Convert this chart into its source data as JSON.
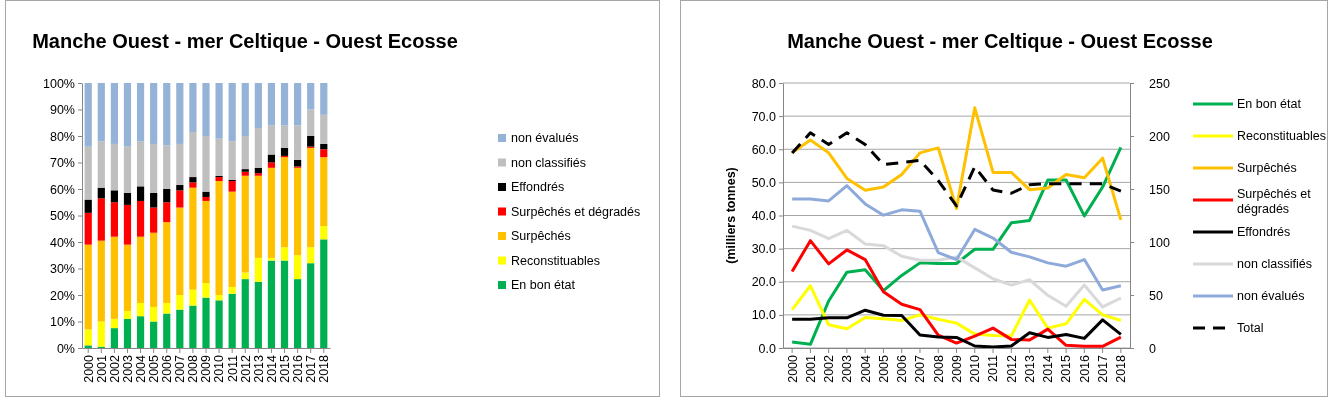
{
  "chart_data": [
    {
      "type": "bar",
      "stacked": true,
      "title": "Manche Ouest - mer Celtique - Ouest Ecosse",
      "legend": "right",
      "categories": [
        "2000",
        "2001",
        "2002",
        "2003",
        "2004",
        "2005",
        "2006",
        "2007",
        "2008",
        "2009",
        "2010",
        "2011",
        "2012",
        "2013",
        "2014",
        "2015",
        "2016",
        "2017",
        "2018"
      ],
      "ylim": [
        0,
        100
      ],
      "yticks": [
        {
          "value": 0,
          "label": "0%"
        },
        {
          "value": 10,
          "label": "10%"
        },
        {
          "value": 20,
          "label": "20%"
        },
        {
          "value": 30,
          "label": "30%"
        },
        {
          "value": 40,
          "label": "40%"
        },
        {
          "value": 50,
          "label": "50%"
        },
        {
          "value": 60,
          "label": "60%"
        },
        {
          "value": 70,
          "label": "70%"
        },
        {
          "value": 80,
          "label": "80%"
        },
        {
          "value": 90,
          "label": "90%"
        },
        {
          "value": 100,
          "label": "100%"
        }
      ],
      "series": [
        {
          "name": "En bon état",
          "color": "#00b050",
          "values": [
            1,
            0.5,
            7.5,
            11,
            12,
            10,
            13,
            14.5,
            16,
            19,
            18,
            20.5,
            26,
            25,
            33,
            33,
            26,
            32,
            41
          ]
        },
        {
          "name": "Reconstituables",
          "color": "#ffff00",
          "values": [
            6,
            9.5,
            3.5,
            3,
            5,
            5.5,
            4,
            5.5,
            6,
            5.5,
            2,
            2.5,
            2.5,
            9,
            1,
            5,
            9,
            6,
            5
          ]
        },
        {
          "name": "Surpêchés",
          "color": "#ffc000",
          "values": [
            32,
            30.5,
            31,
            25,
            25,
            28,
            30.5,
            33,
            38.5,
            31,
            43,
            36,
            36.5,
            31,
            34,
            34,
            33,
            37.5,
            26
          ]
        },
        {
          "name": "Surpêchés et dégradés",
          "color": "#ff0000",
          "values": [
            12,
            16,
            13,
            15,
            13.5,
            9.5,
            7.5,
            6.5,
            2,
            1.5,
            1.5,
            4,
            1.5,
            1,
            2,
            0.5,
            0.5,
            0.5,
            3
          ]
        },
        {
          "name": "Effondrés",
          "color": "#000000",
          "values": [
            5,
            4,
            4.5,
            4.5,
            5.5,
            5.5,
            5,
            2,
            2,
            2,
            0.5,
            0.5,
            1,
            2,
            3,
            3,
            2.5,
            4,
            2
          ]
        },
        {
          "name": "non classifiés",
          "color": "#bfbfbf",
          "values": [
            20,
            17.5,
            17.5,
            17.5,
            17,
            18.5,
            16.5,
            15.5,
            17,
            21,
            14,
            14.5,
            12.5,
            15,
            11,
            8.5,
            13,
            10,
            11
          ]
        },
        {
          "name": "non évalués",
          "color": "#95b3d7",
          "values": [
            24,
            22,
            23,
            24,
            22,
            23,
            23.5,
            23,
            18.5,
            20,
            21,
            22,
            20,
            17,
            16,
            16,
            16,
            10,
            12
          ]
        }
      ]
    },
    {
      "type": "line",
      "title": "Manche Ouest - mer Celtique - Ouest Ecosse",
      "ylabel": "(milliers tonnes)",
      "legend": "right",
      "grid": "y",
      "categories": [
        "2000",
        "2001",
        "2002",
        "2003",
        "2004",
        "2005",
        "2006",
        "2007",
        "2008",
        "2009",
        "2010",
        "2011",
        "2012",
        "2013",
        "2014",
        "2015",
        "2016",
        "2017",
        "2018"
      ],
      "ylim": [
        0,
        80
      ],
      "yticks": [
        {
          "value": 0,
          "label": "0.0"
        },
        {
          "value": 10,
          "label": "10.0"
        },
        {
          "value": 20,
          "label": "20.0"
        },
        {
          "value": 30,
          "label": "30.0"
        },
        {
          "value": 40,
          "label": "40.0"
        },
        {
          "value": 50,
          "label": "50.0"
        },
        {
          "value": 60,
          "label": "60.0"
        },
        {
          "value": 70,
          "label": "70.0"
        },
        {
          "value": 80,
          "label": "80.0"
        }
      ],
      "y2lim": [
        0,
        250
      ],
      "y2ticks": [
        0,
        50,
        100,
        150,
        200,
        250
      ],
      "series": [
        {
          "name": "En bon état",
          "color": "#00b050",
          "values": [
            1.8,
            1.1,
            14.2,
            22.9,
            23.6,
            17.3,
            21.9,
            25.7,
            25.5,
            25.5,
            29.8,
            29.8,
            37.8,
            38.5,
            50.7,
            50.7,
            39.9,
            48.6,
            60.6
          ]
        },
        {
          "name": "Reconstituables",
          "color": "#ffff00",
          "values": [
            11.6,
            18.8,
            7.0,
            5.8,
            9.2,
            8.8,
            8.3,
            10.0,
            8.7,
            7.5,
            4.2,
            3.8,
            3.6,
            14.5,
            6.0,
            7.3,
            14.7,
            10.0,
            8.3
          ]
        },
        {
          "name": "Surpêchés",
          "color": "#ffc000",
          "values": [
            58.9,
            62.8,
            58.9,
            51.2,
            47.6,
            48.6,
            52.4,
            58.9,
            60.4,
            42.1,
            72.5,
            53.0,
            53.0,
            47.8,
            48.3,
            52.4,
            51.4,
            57.3,
            38.7
          ]
        },
        {
          "name": "Surpêchés et dégradés",
          "color": "#ff0000",
          "values": [
            23.1,
            32.4,
            25.4,
            29.6,
            26.7,
            17.0,
            13.2,
            11.6,
            3.9,
            1.5,
            3.6,
            6.0,
            2.6,
            2.4,
            5.7,
            0.8,
            0.5,
            0.5,
            3.3
          ]
        },
        {
          "name": "Effondrés",
          "color": "#000000",
          "values": [
            8.7,
            8.7,
            9.1,
            9.1,
            11.4,
            9.9,
            9.8,
            3.9,
            3.3,
            3.2,
            0.6,
            0.3,
            0.6,
            4.6,
            3.2,
            4.1,
            2.9,
            8.5,
            4.1
          ]
        },
        {
          "name": "non classifiés",
          "color": "#d9d9d9",
          "values": [
            36.8,
            35.5,
            33.0,
            35.5,
            31.4,
            30.9,
            27.7,
            26.5,
            26.5,
            27.5,
            24.2,
            20.9,
            19.0,
            20.6,
            15.9,
            12.6,
            19.0,
            12.4,
            15.1
          ]
        },
        {
          "name": "non évalués",
          "color": "#8eaadb",
          "values": [
            45.0,
            45.0,
            44.4,
            49.0,
            43.5,
            40.1,
            41.7,
            41.3,
            28.8,
            26.7,
            35.8,
            33.2,
            28.9,
            27.5,
            25.7,
            24.7,
            26.7,
            17.5,
            18.8
          ]
        },
        {
          "name": "Total",
          "color": "#000000",
          "axis": "y2",
          "line_style": "dashed",
          "values": [
            184,
            203,
            192,
            203,
            192,
            173,
            175,
            177,
            158,
            134,
            171,
            149,
            146,
            154,
            155,
            155,
            155,
            155,
            148
          ]
        }
      ]
    }
  ]
}
